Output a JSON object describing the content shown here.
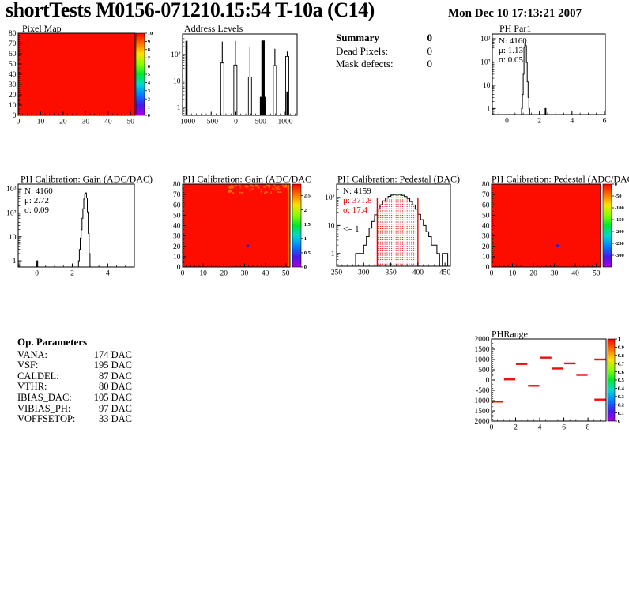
{
  "header": {
    "title": "shortTests M0156-071210.15:54 T-10a (C14)",
    "timestamp": "Mon Dec 10 17:13:21 2007"
  },
  "summary": {
    "title": "Summary",
    "total": "0",
    "rows": [
      {
        "label": "Dead Pixels:",
        "value": "0"
      },
      {
        "label": "Mask defects:",
        "value": "0"
      }
    ]
  },
  "op_parameters": {
    "title": "Op. Parameters",
    "rows": [
      {
        "label": "VANA:",
        "value": "174 DAC"
      },
      {
        "label": "VSF:",
        "value": "195 DAC"
      },
      {
        "label": "CALDEL:",
        "value": "87 DAC"
      },
      {
        "label": "VTHR:",
        "value": "80 DAC"
      },
      {
        "label": "IBIAS_DAC:",
        "value": "105 DAC"
      },
      {
        "label": "VIBIAS_PH:",
        "value": "97 DAC"
      },
      {
        "label": "VOFFSETOP:",
        "value": "33 DAC"
      }
    ]
  },
  "red_fill": "#fc0d00",
  "palette_stops": [
    "#aa00e0",
    "#4619e8",
    "#0080ff",
    "#00d8d0",
    "#00e830",
    "#8aff00",
    "#ffe000",
    "#ff7000",
    "#ff0000"
  ],
  "chart_data": [
    {
      "id": "pixel_map",
      "type": "heatmap",
      "title": "Pixel Map",
      "xlim": [
        0,
        52
      ],
      "ylim": [
        0,
        80
      ],
      "xticks": [
        0,
        10,
        20,
        30,
        40,
        50
      ],
      "yticks": [
        0,
        10,
        20,
        30,
        40,
        50,
        60,
        70,
        80
      ],
      "xminor": 2,
      "yminor": 2,
      "zlim": [
        0,
        10
      ],
      "zticks": [
        [
          10,
          "10"
        ],
        [
          9,
          "9"
        ],
        [
          8,
          "8"
        ],
        [
          7,
          "7"
        ],
        [
          6,
          "6"
        ],
        [
          5,
          "5"
        ],
        [
          4,
          "4"
        ],
        [
          3,
          "3"
        ],
        [
          2,
          "2"
        ],
        [
          1,
          "1"
        ],
        [
          0,
          "0"
        ]
      ],
      "uniform_value": 10
    },
    {
      "id": "address_levels",
      "type": "spikes",
      "title": "Address Levels",
      "xlim": [
        -1080,
        1240
      ],
      "xticks": [
        -1000,
        -500,
        0,
        500,
        1000
      ],
      "xminor": 100,
      "ylog": true,
      "ylim": [
        0.5,
        600
      ],
      "ydecades": [
        [
          1,
          "1"
        ],
        [
          10,
          "10"
        ],
        [
          100,
          "10²"
        ]
      ],
      "spikes": [
        {
          "x": -1000,
          "style": "solid",
          "tip": 330
        },
        {
          "x": -275,
          "style": "hollow",
          "body": 48,
          "tip": 310
        },
        {
          "x": -10,
          "style": "hollow",
          "body": 40,
          "tip": 330
        },
        {
          "x": 285,
          "style": "hollow",
          "body": 14,
          "tip": 185
        },
        {
          "x": 550,
          "style": "thick",
          "base": 2.5,
          "tip": 340
        },
        {
          "x": 790,
          "style": "hollow",
          "body": 38,
          "tip": 165
        },
        {
          "x": 1040,
          "style": "hollow",
          "body": 85,
          "base": 4,
          "tip": 130
        }
      ]
    },
    {
      "id": "ph_par1",
      "type": "hist",
      "title": "PH Par1",
      "stats": [
        {
          "t": "N: 4160",
          "c": "#000000"
        },
        {
          "t": "μ: 1.13",
          "c": "#000000"
        },
        {
          "t": "σ: 0.05",
          "c": "#000000"
        }
      ],
      "xlim": [
        -0.9,
        6.05
      ],
      "xticks": [
        0,
        2,
        4,
        6
      ],
      "xminor": 0.5,
      "ylog": true,
      "ylim": [
        0.55,
        1600
      ],
      "ydecades": [
        [
          1,
          "1"
        ],
        [
          10,
          "10"
        ],
        [
          100,
          "10²"
        ],
        [
          1000,
          "10³"
        ]
      ],
      "binw": 0.05,
      "bins": [
        [
          0.9,
          1
        ],
        [
          0.95,
          4
        ],
        [
          1.0,
          30
        ],
        [
          1.05,
          420
        ],
        [
          1.1,
          650
        ],
        [
          1.15,
          500
        ],
        [
          1.2,
          95
        ],
        [
          1.25,
          14
        ],
        [
          1.3,
          3
        ],
        [
          1.35,
          1
        ],
        [
          2.35,
          1
        ]
      ]
    },
    {
      "id": "gain_hist",
      "type": "hist",
      "title": "PH Calibration: Gain (ADC/DAC)",
      "stats": [
        {
          "t": "N: 4160",
          "c": "#000000"
        },
        {
          "t": "μ: 2.72",
          "c": "#000000"
        },
        {
          "t": "σ: 0.09",
          "c": "#000000"
        }
      ],
      "xlim": [
        -1.05,
        5.5
      ],
      "xticks": [
        0,
        2,
        4
      ],
      "xminor": 0.5,
      "ylog": true,
      "ylim": [
        0.55,
        1600
      ],
      "ydecades": [
        [
          1,
          "1"
        ],
        [
          10,
          "10"
        ],
        [
          100,
          "10²"
        ],
        [
          1000,
          "10³"
        ]
      ],
      "binw": 0.05,
      "bins": [
        [
          0,
          1
        ],
        [
          2.35,
          1
        ],
        [
          2.4,
          3
        ],
        [
          2.45,
          9
        ],
        [
          2.5,
          20
        ],
        [
          2.55,
          60
        ],
        [
          2.6,
          150
        ],
        [
          2.65,
          380
        ],
        [
          2.7,
          620
        ],
        [
          2.75,
          690
        ],
        [
          2.8,
          420
        ],
        [
          2.85,
          110
        ],
        [
          2.9,
          14
        ],
        [
          2.95,
          2
        ]
      ]
    },
    {
      "id": "gain_map",
      "type": "heatmap",
      "title": "PH Calibration: Gain (ADC/DAC)",
      "xlim": [
        0,
        52
      ],
      "ylim": [
        0,
        80
      ],
      "xticks": [
        0,
        10,
        20,
        30,
        40,
        50
      ],
      "yticks": [
        0,
        10,
        20,
        30,
        40,
        50,
        60,
        70,
        80
      ],
      "xminor": 2,
      "yminor": 2,
      "zlim": [
        0,
        2.9
      ],
      "zticks": [
        [
          2.5,
          "2.5"
        ],
        [
          2,
          "2"
        ],
        [
          1.5,
          "1.5"
        ],
        [
          1,
          "1"
        ],
        [
          0.5,
          "0.5"
        ],
        [
          0,
          "0"
        ]
      ],
      "outliers": [
        {
          "x": 31,
          "y": 20,
          "color": "#2020e0"
        }
      ],
      "noise": {
        "count": 60,
        "color": "#ff7a00",
        "edge_strip": true
      }
    },
    {
      "id": "pedestal_hist",
      "type": "hist",
      "title": "PH Calibration: Pedestal (DAC)",
      "stats": [
        {
          "t": "N: 4159",
          "c": "#000000"
        },
        {
          "t": "μ: 371.8",
          "c": "#e80000"
        },
        {
          "t": "σ: 17.4",
          "c": "#e80000"
        },
        {
          "t": "",
          "c": "#000000"
        },
        {
          "t": "<= 1",
          "c": "#000000"
        }
      ],
      "xlim": [
        250,
        460
      ],
      "xticks": [
        250,
        300,
        350,
        400,
        450
      ],
      "xminor": 10,
      "ylog": true,
      "ylim": [
        0.35,
        300
      ],
      "ydecades": [
        [
          1,
          "1"
        ],
        [
          10,
          "10"
        ],
        [
          100,
          "10²"
        ]
      ],
      "binw": 5,
      "bins": [
        [
          285,
          1
        ],
        [
          290,
          1
        ],
        [
          295,
          1
        ],
        [
          300,
          2
        ],
        [
          305,
          4
        ],
        [
          310,
          8
        ],
        [
          315,
          14
        ],
        [
          320,
          24
        ],
        [
          325,
          38
        ],
        [
          330,
          55
        ],
        [
          335,
          75
        ],
        [
          340,
          95
        ],
        [
          345,
          110
        ],
        [
          350,
          122
        ],
        [
          355,
          128
        ],
        [
          360,
          130
        ],
        [
          365,
          128
        ],
        [
          370,
          120
        ],
        [
          375,
          108
        ],
        [
          380,
          92
        ],
        [
          385,
          72
        ],
        [
          390,
          54
        ],
        [
          395,
          38
        ],
        [
          400,
          25
        ],
        [
          405,
          16
        ],
        [
          410,
          10
        ],
        [
          415,
          6
        ],
        [
          420,
          4
        ],
        [
          425,
          2
        ],
        [
          430,
          2
        ],
        [
          435,
          1
        ],
        [
          445,
          1
        ],
        [
          450,
          1
        ]
      ],
      "red_lines": {
        "x": [
          325,
          400
        ],
        "top": 100
      },
      "red_fill": [
        325,
        400
      ]
    },
    {
      "id": "pedestal_map",
      "type": "heatmap",
      "title": "PH Calibration: Pedestal (ADC/DAC)",
      "xlim": [
        0,
        52
      ],
      "ylim": [
        0,
        80
      ],
      "xticks": [
        0,
        10,
        20,
        30,
        40,
        50
      ],
      "yticks": [
        0,
        10,
        20,
        30,
        40,
        50,
        60,
        70,
        80
      ],
      "xminor": 2,
      "yminor": 2,
      "zlim": [
        -350,
        0
      ],
      "zticks": [
        [
          0,
          "0"
        ],
        [
          -50,
          "-50"
        ],
        [
          -100,
          "-100"
        ],
        [
          -150,
          "-150"
        ],
        [
          -200,
          "-200"
        ],
        [
          -250,
          "-250"
        ],
        [
          -300,
          "-300"
        ]
      ],
      "outliers": [
        {
          "x": 31,
          "y": 20,
          "color": "#2020e0"
        }
      ]
    },
    {
      "id": "ph_range",
      "type": "dashes",
      "title": "PHRange",
      "xlim": [
        0,
        9.5
      ],
      "xticks": [
        0,
        2,
        4,
        6,
        8
      ],
      "xminor": 0.5,
      "ylim": [
        -2000,
        2000
      ],
      "yticks": [
        [
          2000,
          "2000"
        ],
        [
          1500,
          "1500"
        ],
        [
          1000,
          "1000"
        ],
        [
          500,
          "500"
        ],
        [
          0,
          "0"
        ],
        [
          -500,
          "-500"
        ],
        [
          -1000,
          "1000"
        ],
        [
          -1500,
          "1500"
        ],
        [
          -2000,
          "2000"
        ]
      ],
      "yminor": 100,
      "zlim": [
        0,
        1
      ],
      "zticks": [
        [
          1,
          "1"
        ],
        [
          0.9,
          "0.9"
        ],
        [
          0.8,
          "0.8"
        ],
        [
          0.7,
          "0.7"
        ],
        [
          0.6,
          "0.6"
        ],
        [
          0.5,
          "0.5"
        ],
        [
          0.4,
          "0.4"
        ],
        [
          0.3,
          "0.3"
        ],
        [
          0.2,
          "0.2"
        ],
        [
          0.1,
          "0.1"
        ],
        [
          0,
          "0"
        ]
      ],
      "dash_color": "#ef0e0e",
      "dashes": [
        [
          0,
          1,
          -1050
        ],
        [
          1,
          2,
          30
        ],
        [
          2,
          3,
          780
        ],
        [
          3,
          4,
          -280
        ],
        [
          4,
          5,
          1090
        ],
        [
          5,
          6,
          560
        ],
        [
          6,
          7,
          810
        ],
        [
          7,
          8,
          250
        ],
        [
          8.5,
          9.5,
          1000
        ],
        [
          8.5,
          9.5,
          -950
        ]
      ]
    }
  ]
}
